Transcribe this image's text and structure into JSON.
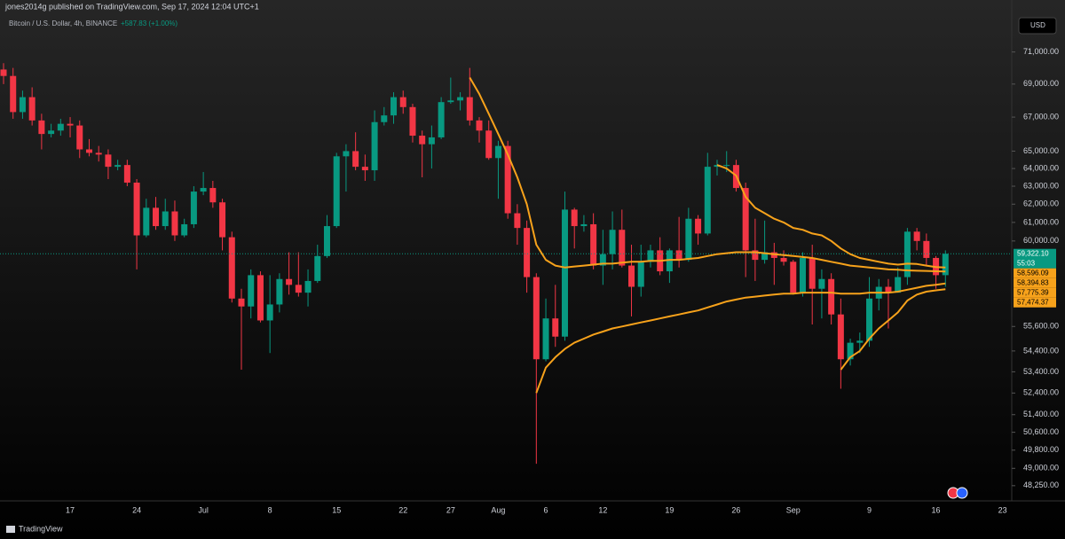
{
  "header": {
    "publisher": "jones2014g published on TradingView.com, Sep 17, 2024 12:04 UTC+1",
    "footer": "TradingView",
    "currency_button": "USD"
  },
  "chart_data": {
    "type": "candlestick",
    "title": "Bitcoin / U.S. Dollar, 4h, BINANCE",
    "change_label": "+587.83 (+1.00%)",
    "log_scale": true,
    "up_color": "#089981",
    "down_color": "#f23645",
    "categories": [
      null,
      null,
      null,
      null,
      null,
      null,
      null,
      "17",
      null,
      null,
      null,
      null,
      null,
      null,
      "24",
      null,
      null,
      null,
      null,
      null,
      null,
      "Jul",
      null,
      null,
      null,
      null,
      null,
      null,
      "8",
      null,
      null,
      null,
      null,
      null,
      null,
      "15",
      null,
      null,
      null,
      null,
      null,
      null,
      "22",
      null,
      null,
      null,
      null,
      "27",
      null,
      null,
      null,
      null,
      "Aug",
      null,
      null,
      null,
      null,
      "6",
      null,
      null,
      null,
      null,
      null,
      "12",
      null,
      null,
      null,
      null,
      null,
      null,
      "19",
      null,
      null,
      null,
      null,
      null,
      null,
      "26",
      null,
      null,
      null,
      null,
      null,
      "Sep",
      null,
      null,
      null,
      null,
      null,
      null,
      null,
      "9",
      null,
      null,
      null,
      null,
      null,
      null,
      "16",
      null,
      null,
      null,
      null,
      null,
      null,
      "23",
      null
    ],
    "open": [
      69900,
      69500,
      67300,
      68200,
      66800,
      66000,
      66200,
      66600,
      66500,
      65100,
      64900,
      64800,
      64100,
      64200,
      63200,
      60300,
      61800,
      60800,
      61600,
      60300,
      60900,
      62700,
      62900,
      62100,
      60200,
      57000,
      56600,
      58200,
      55900,
      56700,
      58000,
      57700,
      57300,
      57900,
      59200,
      60800,
      64700,
      65000,
      64100,
      63900,
      66700,
      67100,
      68200,
      67600,
      65900,
      65400,
      65800,
      67900,
      68000,
      68200,
      66800,
      66200,
      64600,
      65300,
      61500,
      60700,
      58100,
      54000,
      56000,
      55100,
      61700,
      60800,
      60900,
      58700,
      59300,
      60600,
      58700,
      57600,
      58900,
      59500,
      58400,
      59500,
      59000,
      61200,
      60400,
      64100,
      64200,
      64200,
      62900,
      59500,
      59000,
      59400,
      59100,
      58900,
      57300,
      59100,
      57500,
      58000,
      56200,
      54000,
      54800,
      54900,
      57000,
      57600,
      57300,
      58100,
      60500,
      60000,
      59100,
      58200,
      null,
      null,
      null,
      null,
      null,
      null,
      null
    ],
    "high": [
      70300,
      70000,
      68600,
      68800,
      67200,
      66600,
      66900,
      67000,
      66800,
      65700,
      65300,
      65100,
      64500,
      64500,
      63400,
      62300,
      62400,
      62300,
      62200,
      61200,
      63000,
      63800,
      63300,
      62300,
      60500,
      57500,
      58500,
      58400,
      58200,
      58300,
      59400,
      59400,
      58500,
      59800,
      61400,
      64900,
      65400,
      66100,
      64800,
      67400,
      67600,
      68500,
      68600,
      67800,
      66200,
      66500,
      68200,
      69400,
      68500,
      70000,
      67000,
      66800,
      65600,
      65600,
      62000,
      61100,
      58300,
      57000,
      57700,
      62700,
      61800,
      61400,
      61500,
      60600,
      61600,
      61700,
      59800,
      59800,
      59800,
      60200,
      59600,
      61300,
      61800,
      61400,
      64900,
      64500,
      65000,
      64500,
      63200,
      61200,
      61100,
      59900,
      59500,
      59000,
      59400,
      59800,
      58500,
      58300,
      57000,
      55000,
      55300,
      58100,
      58000,
      58000,
      58600,
      60700,
      60700,
      60400,
      59200,
      59500,
      null,
      null,
      null,
      null,
      null,
      null,
      null
    ],
    "low": [
      69000,
      66900,
      66900,
      66500,
      65100,
      65800,
      65900,
      65800,
      64600,
      64700,
      64400,
      63400,
      63900,
      63000,
      58500,
      60200,
      60600,
      60600,
      60000,
      60200,
      60700,
      62500,
      61800,
      59500,
      56800,
      53500,
      56000,
      55800,
      54300,
      56300,
      57200,
      57100,
      56600,
      57800,
      59100,
      60700,
      62700,
      63900,
      63300,
      63300,
      66500,
      66600,
      67200,
      65500,
      63500,
      64000,
      65700,
      67800,
      67400,
      66500,
      65500,
      64500,
      62300,
      61200,
      59800,
      57300,
      49200,
      53900,
      54600,
      54900,
      59600,
      60500,
      58500,
      57700,
      58500,
      58600,
      56100,
      57100,
      58600,
      58200,
      57800,
      58600,
      58900,
      59800,
      60300,
      63600,
      63800,
      62700,
      58100,
      57900,
      58800,
      57700,
      58700,
      57200,
      57100,
      55700,
      56000,
      55700,
      52600,
      53700,
      54300,
      54600,
      56400,
      55500,
      57300,
      57700,
      59500,
      58700,
      57500,
      57600,
      null,
      null,
      null,
      null,
      null,
      null,
      null
    ],
    "close": [
      69500,
      67300,
      68200,
      66800,
      66000,
      66200,
      66600,
      66500,
      65100,
      64900,
      64800,
      64100,
      64200,
      63200,
      60300,
      61800,
      60800,
      61600,
      60300,
      60900,
      62700,
      62900,
      62100,
      60200,
      57000,
      56600,
      58200,
      55900,
      56700,
      58000,
      57700,
      57300,
      57900,
      59200,
      60800,
      64700,
      65000,
      64100,
      63900,
      66700,
      67100,
      68200,
      67600,
      65900,
      65400,
      65800,
      67900,
      68000,
      68200,
      66800,
      66200,
      64600,
      65300,
      61500,
      60700,
      58100,
      54000,
      56000,
      55100,
      61700,
      60800,
      60900,
      58700,
      59300,
      60600,
      58700,
      57600,
      58900,
      59500,
      58400,
      59500,
      59000,
      61200,
      60400,
      64100,
      64200,
      64200,
      62900,
      59500,
      59000,
      59400,
      59100,
      58900,
      57300,
      59100,
      57500,
      58000,
      56200,
      54000,
      54800,
      54900,
      57000,
      57600,
      57300,
      58100,
      60500,
      60000,
      59100,
      58200,
      59322.1,
      null,
      null,
      null,
      null,
      null,
      null,
      null
    ],
    "series": [
      {
        "color": "#f7a21b",
        "values": [
          null,
          null,
          null,
          null,
          null,
          null,
          null,
          null,
          null,
          null,
          null,
          null,
          null,
          null,
          null,
          null,
          null,
          null,
          null,
          null,
          null,
          null,
          null,
          null,
          null,
          null,
          null,
          null,
          null,
          null,
          null,
          null,
          null,
          null,
          null,
          null,
          null,
          null,
          null,
          null,
          null,
          null,
          null,
          null,
          null,
          null,
          null,
          null,
          null,
          69400,
          68400,
          67200,
          66000,
          64800,
          63500,
          62000,
          59800,
          59000,
          58700,
          58600,
          58650,
          58700,
          58750,
          58800,
          58800,
          58850,
          58900,
          58900,
          58950,
          58950,
          59000,
          59000,
          59050,
          59100,
          59200,
          59300,
          59350,
          59400,
          59400,
          59400,
          59350,
          59300,
          59250,
          59200,
          59150,
          59100,
          59000,
          58900,
          58800,
          58700,
          58650,
          58600,
          58550,
          58500,
          58480,
          58450,
          58430,
          58420,
          58400,
          58394.83,
          null,
          null,
          null,
          null,
          null,
          null,
          null
        ]
      },
      {
        "color": "#f7a21b",
        "values": [
          null,
          null,
          null,
          null,
          null,
          null,
          null,
          null,
          null,
          null,
          null,
          null,
          null,
          null,
          null,
          null,
          null,
          null,
          null,
          null,
          null,
          null,
          null,
          null,
          null,
          null,
          null,
          null,
          null,
          null,
          null,
          null,
          null,
          null,
          null,
          null,
          null,
          null,
          null,
          null,
          null,
          null,
          null,
          null,
          null,
          null,
          null,
          null,
          null,
          null,
          null,
          null,
          null,
          null,
          null,
          null,
          52400,
          53600,
          54100,
          54500,
          54800,
          55000,
          55200,
          55350,
          55500,
          55600,
          55700,
          55800,
          55900,
          56000,
          56100,
          56200,
          56300,
          56400,
          56550,
          56700,
          56850,
          56950,
          57050,
          57100,
          57150,
          57200,
          57250,
          57250,
          57300,
          57300,
          57300,
          57300,
          57250,
          57250,
          57250,
          57300,
          57300,
          57300,
          57350,
          57450,
          57550,
          57650,
          57700,
          57775.39,
          null,
          null,
          null,
          null,
          null,
          null,
          null
        ]
      },
      {
        "color": "#f7a21b",
        "values": [
          null,
          null,
          null,
          null,
          null,
          null,
          null,
          null,
          null,
          null,
          null,
          null,
          null,
          null,
          null,
          null,
          null,
          null,
          null,
          null,
          null,
          null,
          null,
          null,
          null,
          null,
          null,
          null,
          null,
          null,
          null,
          null,
          null,
          null,
          null,
          null,
          null,
          null,
          null,
          null,
          null,
          null,
          null,
          null,
          null,
          null,
          null,
          null,
          null,
          null,
          null,
          null,
          null,
          null,
          null,
          null,
          null,
          null,
          null,
          null,
          null,
          null,
          null,
          null,
          null,
          null,
          null,
          null,
          null,
          null,
          null,
          null,
          null,
          null,
          null,
          64200,
          64000,
          63600,
          62400,
          61800,
          61500,
          61200,
          61000,
          60700,
          60600,
          60400,
          60300,
          60000,
          59600,
          59300,
          59100,
          59000,
          58900,
          58800,
          58750,
          58800,
          58780,
          58700,
          58620,
          58596.09,
          null,
          null,
          null,
          null,
          null,
          null,
          null
        ]
      },
      {
        "color": "#f7a21b",
        "values": [
          null,
          null,
          null,
          null,
          null,
          null,
          null,
          null,
          null,
          null,
          null,
          null,
          null,
          null,
          null,
          null,
          null,
          null,
          null,
          null,
          null,
          null,
          null,
          null,
          null,
          null,
          null,
          null,
          null,
          null,
          null,
          null,
          null,
          null,
          null,
          null,
          null,
          null,
          null,
          null,
          null,
          null,
          null,
          null,
          null,
          null,
          null,
          null,
          null,
          null,
          null,
          null,
          null,
          null,
          null,
          null,
          null,
          null,
          null,
          null,
          null,
          null,
          null,
          null,
          null,
          null,
          null,
          null,
          null,
          null,
          null,
          null,
          null,
          null,
          null,
          null,
          null,
          null,
          null,
          null,
          null,
          null,
          null,
          null,
          null,
          null,
          null,
          null,
          53500,
          54100,
          54400,
          55000,
          55500,
          55900,
          56300,
          56900,
          57200,
          57350,
          57420,
          57474.37,
          null,
          null,
          null,
          null,
          null,
          null,
          null
        ]
      }
    ],
    "price_tags": [
      {
        "value": 59322.1,
        "label": "59,322.10",
        "sub": "55:03",
        "color": "#089981",
        "text_color": "#ffffff"
      },
      {
        "value": 58596.09,
        "label": "58,596.09",
        "color": "#f7a21b",
        "text_color": "#000000"
      },
      {
        "value": 58394.83,
        "label": "58,394.83",
        "color": "#f7a21b",
        "text_color": "#000000"
      },
      {
        "value": 57775.39,
        "label": "57,775.39",
        "color": "#f7a21b",
        "text_color": "#000000"
      },
      {
        "value": 57474.37,
        "label": "57,474.37",
        "color": "#f7a21b",
        "text_color": "#000000"
      }
    ],
    "ylim": [
      47600,
      73200
    ],
    "yticks": [
      {
        "value": 71000,
        "label": "71,000.00"
      },
      {
        "value": 69000,
        "label": "69,000.00"
      },
      {
        "value": 67000,
        "label": "67,000.00"
      },
      {
        "value": 65000,
        "label": "65,000.00"
      },
      {
        "value": 64000,
        "label": "64,000.00"
      },
      {
        "value": 63000,
        "label": "63,000.00"
      },
      {
        "value": 62000,
        "label": "62,000.00"
      },
      {
        "value": 61000,
        "label": "61,000.00"
      },
      {
        "value": 60000,
        "label": "60,000.00"
      },
      {
        "value": 55600,
        "label": "55,600.00"
      },
      {
        "value": 54400,
        "label": "54,400.00"
      },
      {
        "value": 53400,
        "label": "53,400.00"
      },
      {
        "value": 52400,
        "label": "52,400.00"
      },
      {
        "value": 51400,
        "label": "51,400.00"
      },
      {
        "value": 50600,
        "label": "50,600.00"
      },
      {
        "value": 49800,
        "label": "49,800.00"
      },
      {
        "value": 49000,
        "label": "49,000.00"
      },
      {
        "value": 48250,
        "label": "48,250.00"
      }
    ]
  }
}
